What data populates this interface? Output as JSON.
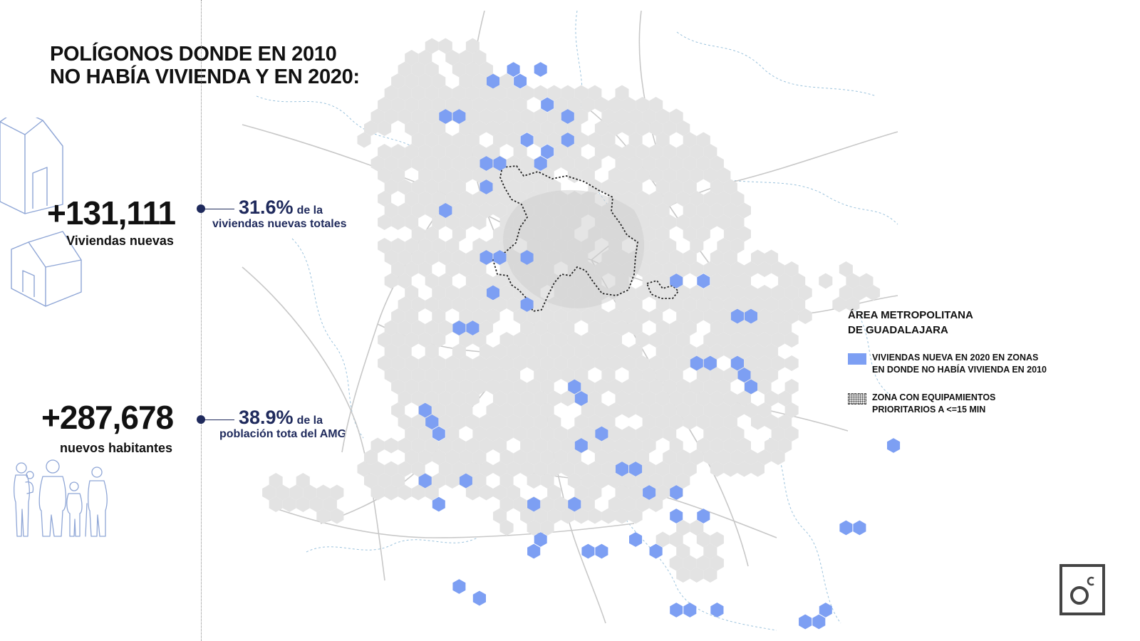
{
  "title": {
    "line1": "POLÍGONOS DONDE EN 2010",
    "line2": "NO HABÍA VIVIENDA Y EN 2020:"
  },
  "stats": [
    {
      "value": "+131,111",
      "label": "Viviendas nuevas",
      "percent": "31.6%",
      "percent_suffix": "de la",
      "percent_desc": "viviendas nuevas  totales"
    },
    {
      "value": "+287,678",
      "label": "nuevos habitantes",
      "percent": "38.9%",
      "percent_suffix": "de la",
      "percent_desc": "población tota del AMG"
    }
  ],
  "legend": {
    "title_line1": "ÁREA METROPOLITANA",
    "title_line2": "DE GUADALAJARA",
    "items": [
      {
        "line1": "VIVIENDAS NUEVA EN 2020 EN ZONAS",
        "line2": "EN DONDE NO HABÍA VIVIENDA EN 2010",
        "swatch": "blue-hex"
      },
      {
        "line1": "ZONA CON EQUIPAMIENTOS",
        "line2": "PRIORITARIOS A <=15 MIN",
        "swatch": "dotted-outline"
      }
    ]
  },
  "colors": {
    "new_housing": "#7d9ff3",
    "urban_area": "#e3e3e3",
    "urban_core": "#d2d2d2",
    "roads": "#c4c4c4",
    "rivers": "#9cc3dd",
    "stat_accent": "#1f2a5c",
    "icon_stroke": "#8fa6d6"
  },
  "icons": [
    "house-outline-icon",
    "family-outline-icon",
    "brand-logo-icon"
  ]
}
